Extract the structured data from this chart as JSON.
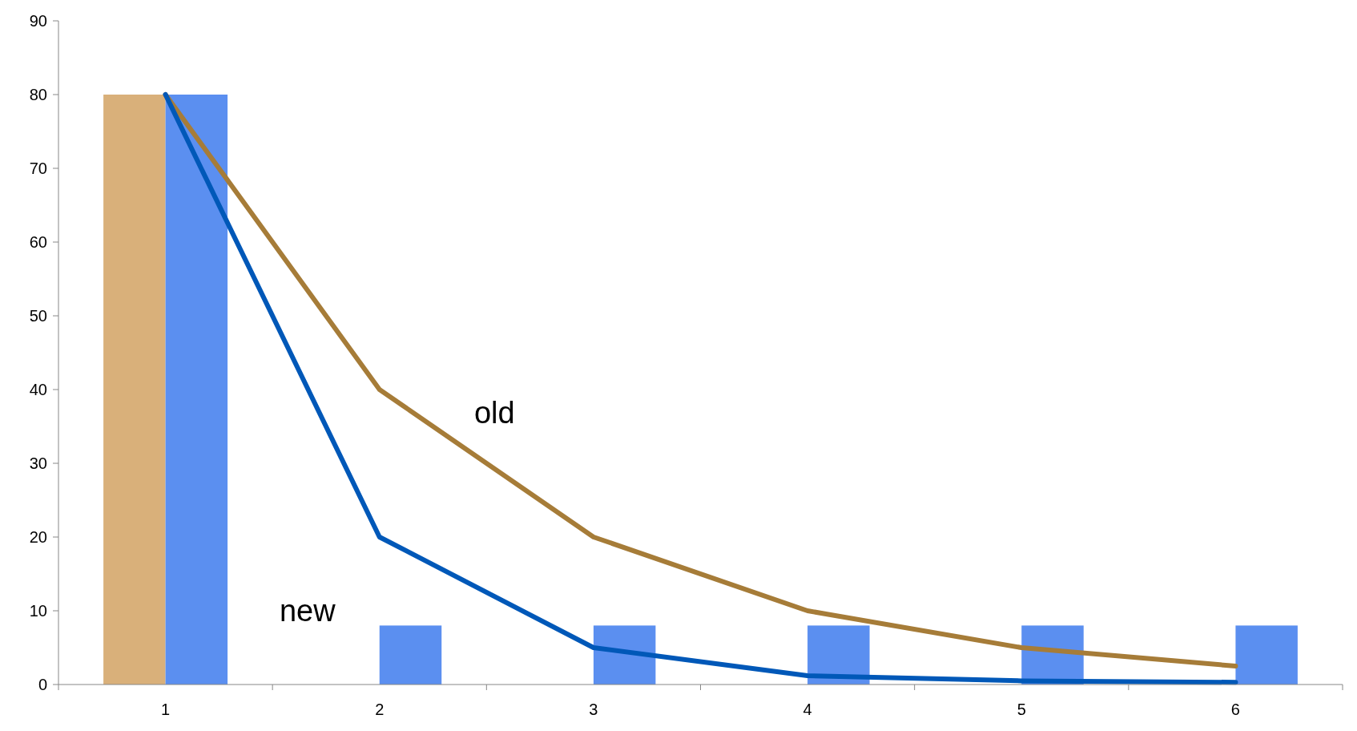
{
  "chart_data": {
    "type": "bar",
    "categories": [
      "1",
      "2",
      "3",
      "4",
      "5",
      "6"
    ],
    "ylim": [
      0,
      90
    ],
    "yticks": [
      0,
      10,
      20,
      30,
      40,
      50,
      60,
      70,
      80,
      90
    ],
    "grid": false,
    "series": [
      {
        "color": "#d9b07a",
        "values": [
          80,
          null,
          null,
          null,
          null,
          null
        ]
      },
      {
        "color": "#5b8ff0",
        "values": [
          80,
          8,
          8,
          8,
          8,
          8
        ]
      },
      {
        "type": "line",
        "name": "old",
        "color": "#a67c38",
        "values": [
          80,
          40,
          20,
          10,
          5,
          2.5
        ]
      },
      {
        "type": "line",
        "name": "new",
        "color": "#0058b8",
        "values": [
          80,
          20,
          5,
          1.2,
          0.5,
          0.3
        ]
      }
    ]
  }
}
